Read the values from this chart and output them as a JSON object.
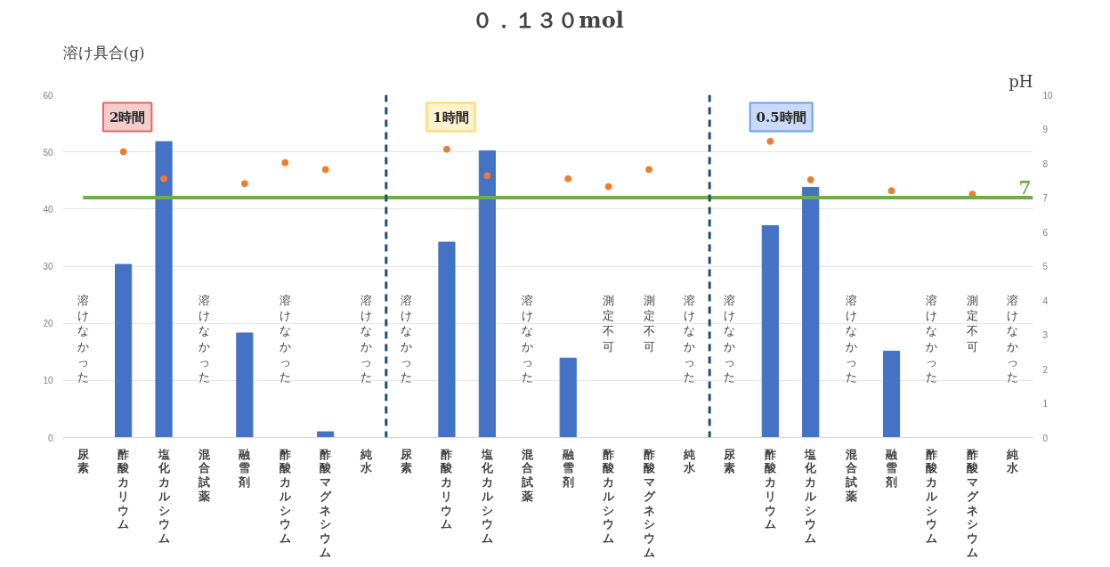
{
  "chart_data": {
    "type": "bar",
    "title": "０．１３０mol",
    "ylabel": "溶け具合(g)",
    "y2label": "pH",
    "categories": [
      "尿素",
      "酢酸カリウム",
      "塩化カルシウム",
      "混合試薬",
      "融雪剤",
      "酢酸カルシウム",
      "酢酸マグネシウム",
      "純水",
      "尿素",
      "酢酸カリウム",
      "塩化カルシウム",
      "混合試薬",
      "融雪剤",
      "酢酸カルシウム",
      "酢酸マグネシウム",
      "純水",
      "尿素",
      "酢酸カリウム",
      "塩化カルシウム",
      "混合試薬",
      "融雪剤",
      "酢酸カルシウム",
      "酢酸マグネシウム",
      "純水"
    ],
    "series": [
      {
        "color": "#4472c4",
        "values": [
          null,
          30.3,
          51.8,
          null,
          18.3,
          null,
          1,
          null,
          null,
          34.2,
          50.2,
          null,
          13.9,
          null,
          null,
          null,
          null,
          37.1,
          43.8,
          null,
          15.1,
          null,
          null,
          null
        ],
        "value_labels": [
          "溶けなかった",
          null,
          null,
          "溶けなかった",
          null,
          "溶けなかった",
          null,
          "溶けなかった",
          "溶けなかった",
          null,
          null,
          "溶けなかった",
          null,
          "測定不可",
          "測定不可",
          "溶けなかった",
          "溶けなかった",
          null,
          null,
          "溶けなかった",
          null,
          "溶けなかった",
          "測定不可",
          "溶けなかった"
        ]
      },
      {
        "type": "scatter",
        "axis": "y2",
        "color": "#ed7d31",
        "marker": "circle",
        "values": [
          null,
          8.34,
          7.55,
          null,
          7.41,
          8.02,
          7.82,
          null,
          null,
          8.41,
          7.64,
          null,
          7.55,
          7.32,
          7.82,
          null,
          null,
          8.64,
          7.52,
          null,
          7.2,
          null,
          7.1,
          null
        ]
      }
    ],
    "ylim": [
      0,
      60
    ],
    "yticks": [
      0,
      10,
      20,
      30,
      40,
      50,
      60
    ],
    "y2lim": [
      0,
      10
    ],
    "y2ticks": [
      0,
      1,
      2,
      3,
      4,
      5,
      6,
      7,
      8,
      9,
      10
    ],
    "grid": "y",
    "ref_lines": [
      {
        "axis": "y2",
        "value": 7,
        "label": "7",
        "color": "#70ad47",
        "line_style": "solid"
      }
    ],
    "annotations": [
      "2時間",
      "1時間",
      "0.5時間"
    ]
  }
}
